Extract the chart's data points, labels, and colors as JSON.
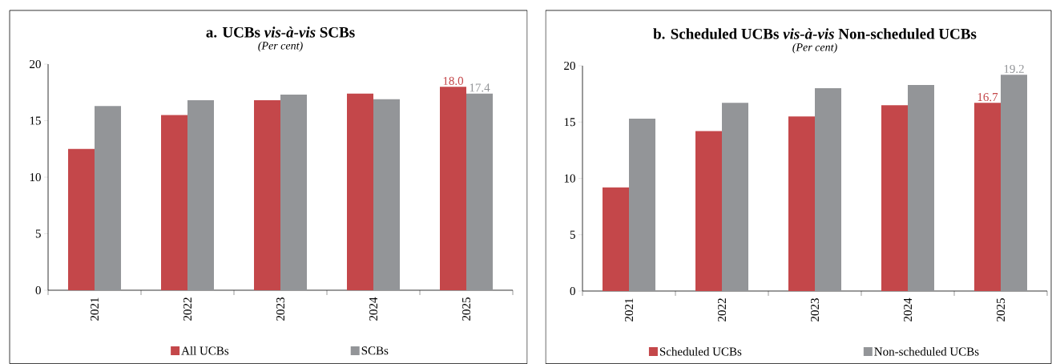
{
  "chart_data": [
    {
      "type": "bar",
      "title": "a. UCBs *vis-à-vis* SCBs",
      "subtitle": "(Per cent)",
      "categories": [
        "2021",
        "2022",
        "2023",
        "2024",
        "2025"
      ],
      "series": [
        {
          "name": "All UCBs",
          "color": "#c4474a",
          "values": [
            12.5,
            15.5,
            16.8,
            17.4,
            18.0
          ],
          "value_labels": [
            null,
            null,
            null,
            null,
            "18.0"
          ]
        },
        {
          "name": "SCBs",
          "color": "#939598",
          "values": [
            16.3,
            16.8,
            17.3,
            16.9,
            17.4
          ],
          "value_labels": [
            null,
            null,
            null,
            null,
            "17.4"
          ]
        }
      ],
      "ylim": [
        0,
        20
      ],
      "yticks": [
        0,
        5,
        10,
        15,
        20
      ],
      "legend": "bottom"
    },
    {
      "type": "bar",
      "title": "b. Scheduled UCBs *vis-à-vis* Non-scheduled UCBs",
      "subtitle": "(Per cent)",
      "categories": [
        "2021",
        "2022",
        "2023",
        "2024",
        "2025"
      ],
      "series": [
        {
          "name": "Scheduled UCBs",
          "color": "#c4474a",
          "values": [
            9.2,
            14.2,
            15.5,
            16.5,
            16.7
          ],
          "value_labels": [
            null,
            null,
            null,
            null,
            "16.7"
          ]
        },
        {
          "name": "Non-scheduled UCBs",
          "color": "#939598",
          "values": [
            15.3,
            16.7,
            18.0,
            18.3,
            19.2
          ],
          "value_labels": [
            null,
            null,
            null,
            null,
            "19.2"
          ]
        }
      ],
      "ylim": [
        0,
        20
      ],
      "yticks": [
        0,
        5,
        10,
        15,
        20
      ],
      "legend": "bottom"
    }
  ]
}
